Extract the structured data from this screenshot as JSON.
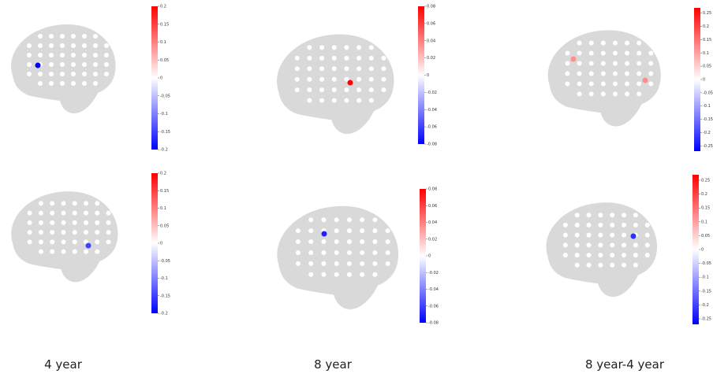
{
  "columns": [
    "4 year",
    "8 year",
    "8 year-4 year"
  ],
  "panels": [
    {
      "colorbar": {
        "lim": [
          -0.2,
          0.2
        ],
        "ticks": [
          0.2,
          0.15,
          0.1,
          0.05,
          0,
          -0.05,
          -0.1,
          -0.15,
          -0.2
        ]
      },
      "electrodes": [
        {
          "value": -0.2
        }
      ]
    },
    {
      "colorbar": {
        "lim": [
          -0.08,
          0.08
        ],
        "ticks": [
          0.08,
          0.06,
          0.04,
          0.02,
          0,
          -0.02,
          -0.04,
          -0.06,
          -0.08
        ]
      },
      "electrodes": [
        {
          "value": 0.08
        }
      ]
    },
    {
      "colorbar": {
        "lim": [
          -0.27,
          0.27
        ],
        "ticks": [
          0.25,
          0.2,
          0.15,
          0.1,
          0.05,
          0,
          -0.05,
          -0.1,
          -0.15,
          -0.2,
          -0.25
        ]
      },
      "electrodes": [
        {
          "value": 0.12
        },
        {
          "value": 0.12
        }
      ]
    },
    {
      "colorbar": {
        "lim": [
          -0.2,
          0.2
        ],
        "ticks": [
          0.2,
          0.15,
          0.1,
          0.05,
          0,
          -0.05,
          -0.1,
          -0.15,
          -0.2
        ]
      },
      "electrodes": [
        {
          "value": -0.15
        }
      ]
    },
    {
      "colorbar": {
        "lim": [
          -0.08,
          0.08
        ],
        "ticks": [
          0.08,
          0.06,
          0.04,
          0.02,
          0,
          -0.02,
          -0.04,
          -0.06,
          -0.08
        ]
      },
      "electrodes": [
        {
          "value": -0.07
        }
      ]
    },
    {
      "colorbar": {
        "lim": [
          -0.27,
          0.27
        ],
        "ticks": [
          0.25,
          0.2,
          0.15,
          0.1,
          0.05,
          0,
          -0.05,
          -0.1,
          -0.15,
          -0.2,
          -0.25
        ]
      },
      "electrodes": [
        {
          "value": -0.22
        }
      ]
    }
  ]
}
